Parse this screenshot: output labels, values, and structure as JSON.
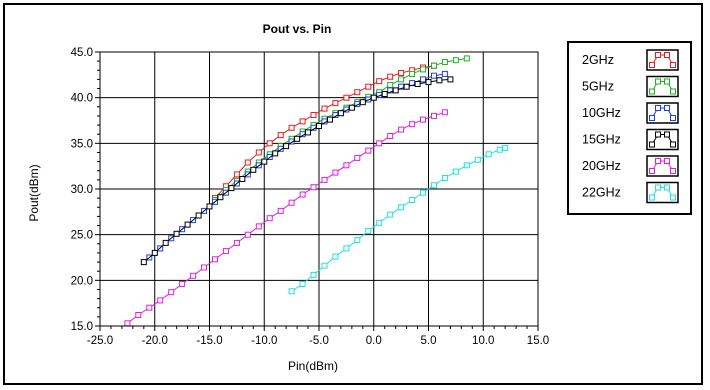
{
  "chart_data": {
    "type": "line",
    "title": "Pout vs. Pin",
    "xlabel": "Pin(dBm)",
    "ylabel": "Pout(dBm)",
    "xlim": [
      -25.0,
      15.0
    ],
    "ylim": [
      15.0,
      45.0
    ],
    "xticks": [
      "-25.0",
      "-20.0",
      "-15.0",
      "-10.0",
      "-5.0",
      "0.0",
      "5.0",
      "10.0",
      "15.0"
    ],
    "yticks": [
      "15.0",
      "20.0",
      "25.0",
      "30.0",
      "35.0",
      "40.0",
      "45.0"
    ],
    "grid": true,
    "legend_position": "right",
    "marker": "square",
    "series": [
      {
        "name": "2GHz",
        "color": "#e02020",
        "x": [
          -14.5,
          -13.5,
          -12.5,
          -11.5,
          -10.5,
          -9.5,
          -8.5,
          -7.5,
          -6.5,
          -5.5,
          -4.5,
          -3.5,
          -2.5,
          -1.5,
          -0.5,
          0.5,
          1.5,
          2.5,
          3.5,
          4.5,
          5.5
        ],
        "y": [
          29.0,
          30.3,
          31.6,
          32.9,
          34.0,
          35.0,
          35.9,
          36.7,
          37.4,
          38.1,
          38.8,
          39.4,
          40.0,
          40.6,
          41.2,
          41.8,
          42.3,
          42.7,
          43.0,
          43.3,
          43.5
        ]
      },
      {
        "name": "5GHz",
        "color": "#20b020",
        "x": [
          -14.5,
          -13.5,
          -12.5,
          -11.5,
          -10.5,
          -9.5,
          -8.5,
          -7.5,
          -6.5,
          -5.5,
          -4.5,
          -3.5,
          -2.5,
          -1.5,
          -0.5,
          0.5,
          1.5,
          2.5,
          3.5,
          4.5,
          5.5,
          6.5,
          7.5,
          8.5
        ],
        "y": [
          28.8,
          29.9,
          30.9,
          31.9,
          32.9,
          33.8,
          34.7,
          35.5,
          36.3,
          37.0,
          37.7,
          38.3,
          38.9,
          39.5,
          40.1,
          40.6,
          41.4,
          42.0,
          42.6,
          43.1,
          43.5,
          43.9,
          44.1,
          44.3
        ]
      },
      {
        "name": "10GHz",
        "color": "#2040e0",
        "x": [
          -20.5,
          -19.5,
          -18.5,
          -17.5,
          -16.5,
          -15.5,
          -14.5,
          -13.5,
          -12.5,
          -11.5,
          -10.5,
          -9.5,
          -8.5,
          -7.5,
          -6.5,
          -5.5,
          -4.5,
          -3.5,
          -2.5,
          -1.5,
          -0.5,
          0.5,
          1.5,
          2.5,
          3.5,
          4.5,
          5.5,
          6.5
        ],
        "y": [
          22.5,
          23.5,
          24.6,
          25.6,
          26.6,
          27.6,
          28.6,
          29.6,
          30.6,
          31.6,
          32.6,
          33.5,
          34.4,
          35.2,
          36.0,
          36.7,
          37.4,
          38.1,
          38.7,
          39.3,
          39.8,
          40.3,
          40.8,
          41.2,
          41.6,
          42.0,
          42.4,
          42.6
        ]
      },
      {
        "name": "15GHz",
        "color": "#000000",
        "x": [
          -21.0,
          -20.0,
          -19.0,
          -18.0,
          -17.0,
          -16.0,
          -15.0,
          -14.0,
          -13.0,
          -12.0,
          -11.0,
          -10.0,
          -9.0,
          -8.0,
          -7.0,
          -6.0,
          -5.0,
          -4.0,
          -3.0,
          -2.0,
          -1.0,
          0.0,
          1.0,
          2.0,
          3.0,
          4.0,
          5.0,
          6.0,
          7.0
        ],
        "y": [
          22.0,
          23.0,
          24.1,
          25.1,
          26.1,
          27.1,
          28.1,
          29.1,
          30.1,
          31.1,
          32.1,
          33.0,
          33.9,
          34.7,
          35.5,
          36.2,
          36.9,
          37.6,
          38.3,
          38.9,
          39.5,
          40.0,
          40.4,
          40.8,
          41.2,
          41.5,
          41.7,
          41.9,
          42.0
        ]
      },
      {
        "name": "20GHz",
        "color": "#e020e0",
        "x": [
          -22.5,
          -21.5,
          -20.5,
          -19.5,
          -18.5,
          -17.5,
          -16.5,
          -15.5,
          -14.5,
          -13.5,
          -12.5,
          -11.5,
          -10.5,
          -9.5,
          -8.5,
          -7.5,
          -6.5,
          -5.5,
          -4.5,
          -3.5,
          -2.5,
          -1.5,
          -0.5,
          0.5,
          1.5,
          2.5,
          3.5,
          4.5,
          5.5,
          6.5
        ],
        "y": [
          15.3,
          16.2,
          17.0,
          17.8,
          18.7,
          19.6,
          20.5,
          21.4,
          22.3,
          23.2,
          24.1,
          25.0,
          25.9,
          26.8,
          27.6,
          28.5,
          29.4,
          30.2,
          31.0,
          31.8,
          32.6,
          33.4,
          34.2,
          35.0,
          35.8,
          36.5,
          37.1,
          37.6,
          38.0,
          38.4
        ]
      },
      {
        "name": "22GHz",
        "color": "#20e0e0",
        "x": [
          -7.5,
          -6.5,
          -5.5,
          -4.5,
          -3.5,
          -2.5,
          -1.5,
          -0.5,
          0.5,
          1.5,
          2.5,
          3.5,
          4.5,
          5.5,
          6.5,
          7.5,
          8.5,
          9.5,
          10.5,
          11.5,
          12.0
        ],
        "y": [
          18.8,
          19.6,
          20.6,
          21.6,
          22.6,
          23.5,
          24.4,
          25.4,
          26.3,
          27.2,
          28.0,
          28.8,
          29.6,
          30.4,
          31.2,
          31.9,
          32.6,
          33.2,
          33.8,
          34.3,
          34.5
        ]
      }
    ]
  }
}
